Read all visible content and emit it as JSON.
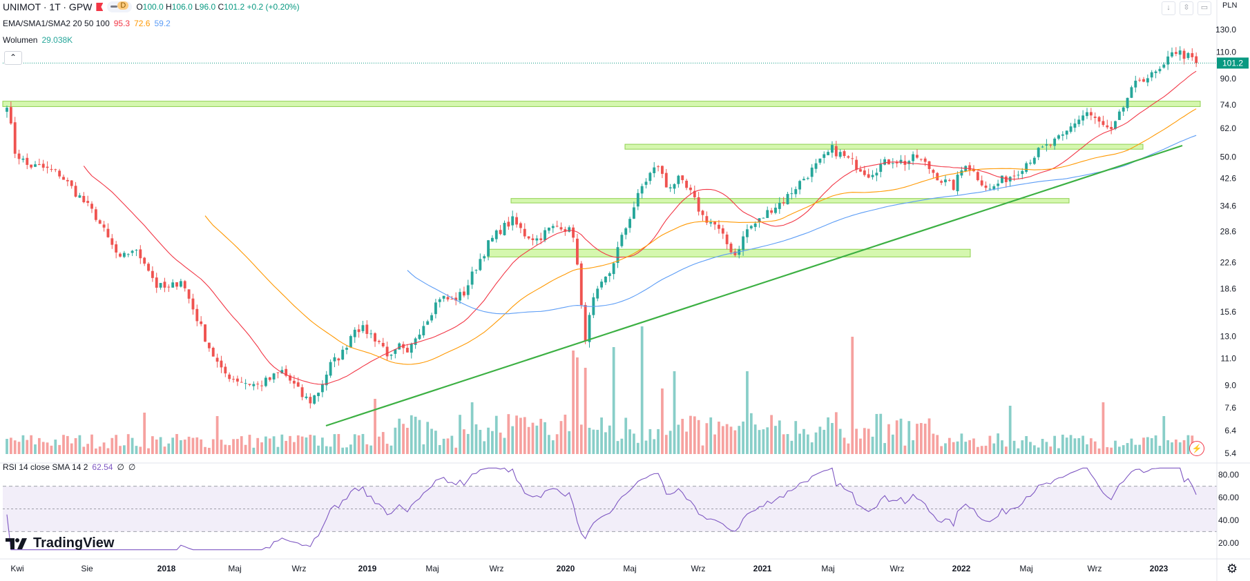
{
  "header": {
    "symbol": "UNIMOT · 1T · GPW",
    "ohlc": {
      "o_label": "O",
      "o": "100.0",
      "h_label": "H",
      "h": "106.0",
      "l_label": "L",
      "l": "96.0",
      "c_label": "C",
      "c": "101.2",
      "change": "+0.2 (+0.20%)"
    },
    "pill_letter": "D",
    "indicator_label": "EMA/SMA1/SMA2 20 50 100",
    "indicator_values": [
      "95.3",
      "72.6",
      "59.2"
    ],
    "volume_label": "Wolumen",
    "volume_value": "29.038K",
    "currency": "PLN"
  },
  "rsi_header": {
    "label": "RSI 14 close SMA 14 2",
    "value": "62.54",
    "extra1": "∅",
    "extra2": "∅"
  },
  "brand": "TradingView",
  "colors": {
    "up": "#26a69a",
    "down": "#ef5350",
    "ema20": "#f23645",
    "sma50": "#ff9800",
    "sma100": "#5b9cf6",
    "rsi": "#7e57c2",
    "zone": "#b9f27a",
    "trend": "#3cb043",
    "last": "#089981"
  },
  "chart_data": {
    "type": "candlestick",
    "title": "UNIMOT · 1T · GPW",
    "scale": "log",
    "y_ticks": [
      "130.0",
      "110.0",
      "90.0",
      "74.0",
      "62.0",
      "50.0",
      "42.6",
      "34.6",
      "28.6",
      "22.6",
      "18.6",
      "15.6",
      "13.0",
      "11.0",
      "9.0",
      "7.6",
      "6.4",
      "5.4"
    ],
    "x_ticks": [
      "Kwi",
      "Sie",
      "2018",
      "Maj",
      "Wrz",
      "2019",
      "Maj",
      "Wrz",
      "2020",
      "Maj",
      "Wrz",
      "2021",
      "Maj",
      "Wrz",
      "2022",
      "Maj",
      "Wrz",
      "2023"
    ],
    "last_price": "101.2",
    "close_path": [
      [
        0,
        75
      ],
      [
        2,
        52
      ],
      [
        5,
        47
      ],
      [
        9,
        46
      ],
      [
        13,
        44
      ],
      [
        18,
        37
      ],
      [
        22,
        32
      ],
      [
        25,
        27
      ],
      [
        28,
        23
      ],
      [
        31,
        25
      ],
      [
        34,
        23
      ],
      [
        37,
        19
      ],
      [
        40,
        18.5
      ],
      [
        43,
        20
      ],
      [
        46,
        16
      ],
      [
        50,
        12
      ],
      [
        53,
        10
      ],
      [
        56,
        9.5
      ],
      [
        59,
        9.2
      ],
      [
        62,
        9.0
      ],
      [
        65,
        9.4
      ],
      [
        68,
        10
      ],
      [
        71,
        9
      ],
      [
        73,
        8.3
      ],
      [
        75,
        8
      ],
      [
        77,
        8.6
      ],
      [
        80,
        10.5
      ],
      [
        83,
        11.5
      ],
      [
        86,
        14
      ],
      [
        89,
        13.5
      ],
      [
        92,
        12.5
      ],
      [
        95,
        11
      ],
      [
        97,
        12
      ],
      [
        99,
        11.2
      ],
      [
        101,
        13
      ],
      [
        104,
        15
      ],
      [
        107,
        17.5
      ],
      [
        110,
        17
      ],
      [
        113,
        18
      ],
      [
        116,
        22
      ],
      [
        119,
        26
      ],
      [
        122,
        29
      ],
      [
        125,
        31
      ],
      [
        128,
        28
      ],
      [
        131,
        27
      ],
      [
        134,
        29
      ],
      [
        137,
        30
      ],
      [
        140,
        28
      ],
      [
        141,
        22
      ],
      [
        142,
        16
      ],
      [
        143,
        13
      ],
      [
        145,
        17
      ],
      [
        147,
        19
      ],
      [
        149,
        21
      ],
      [
        151,
        25
      ],
      [
        154,
        32
      ],
      [
        157,
        40
      ],
      [
        159,
        44
      ],
      [
        161,
        47
      ],
      [
        163,
        40
      ],
      [
        166,
        42
      ],
      [
        169,
        38
      ],
      [
        172,
        32
      ],
      [
        175,
        30
      ],
      [
        178,
        26
      ],
      [
        180,
        24
      ],
      [
        183,
        29
      ],
      [
        186,
        31
      ],
      [
        189,
        34
      ],
      [
        192,
        36
      ],
      [
        195,
        40
      ],
      [
        198,
        44
      ],
      [
        201,
        48
      ],
      [
        204,
        53
      ],
      [
        207,
        50
      ],
      [
        210,
        47
      ],
      [
        213,
        44
      ],
      [
        216,
        47
      ],
      [
        219,
        49
      ],
      [
        222,
        48
      ],
      [
        225,
        50
      ],
      [
        228,
        46
      ],
      [
        231,
        42
      ],
      [
        234,
        40
      ],
      [
        237,
        48
      ],
      [
        240,
        43
      ],
      [
        243,
        39
      ],
      [
        246,
        42
      ],
      [
        249,
        44
      ],
      [
        252,
        48
      ],
      [
        255,
        52
      ],
      [
        258,
        55
      ],
      [
        261,
        58
      ],
      [
        264,
        65
      ],
      [
        267,
        70
      ],
      [
        269,
        66
      ],
      [
        271,
        63
      ],
      [
        273,
        60
      ],
      [
        275,
        68
      ],
      [
        277,
        78
      ],
      [
        280,
        90
      ],
      [
        283,
        92
      ],
      [
        286,
        97
      ],
      [
        288,
        112
      ],
      [
        290,
        109
      ],
      [
        292,
        106
      ],
      [
        294,
        101.2
      ]
    ],
    "n_bars": 295,
    "series": [
      {
        "name": "EMA 20",
        "value": "95.3"
      },
      {
        "name": "SMA 50",
        "value": "72.6"
      },
      {
        "name": "SMA 100",
        "value": "59.2"
      }
    ],
    "volume": {
      "name": "Wolumen",
      "value": "29.038K"
    },
    "rsi": {
      "name": "RSI 14",
      "value": 62.54,
      "levels": [
        70,
        50,
        30
      ],
      "y_ticks": [
        "80.00",
        "60.00",
        "40.00",
        "20.00"
      ],
      "ylim": [
        12,
        88
      ]
    },
    "zones": [
      {
        "from": 73,
        "to": 76
      },
      {
        "from": 53,
        "to": 55
      },
      {
        "from": 35.4,
        "to": 36.6
      },
      {
        "from": 23.6,
        "to": 25.0
      }
    ]
  }
}
